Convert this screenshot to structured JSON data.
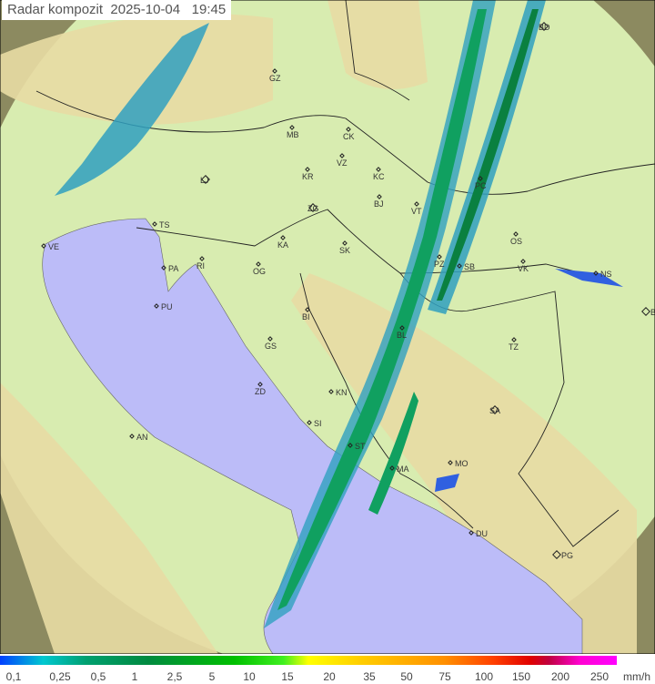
{
  "title": {
    "label": "Radar kompozit",
    "date": "2025-10-04",
    "time": "19:45"
  },
  "legend": {
    "unit": "mm/h",
    "values": [
      "0,1",
      "0,25",
      "0,5",
      "1",
      "2,5",
      "5",
      "10",
      "15",
      "20",
      "35",
      "50",
      "75",
      "100",
      "150",
      "200",
      "250"
    ]
  },
  "map": {
    "colors": {
      "land": "#d8ecb0",
      "highland": "#e6dca0",
      "sea": "#bcbcf8",
      "outside_range": "#8c8a60",
      "precip_light": "#30a0c0",
      "precip_mid": "#10a060",
      "precip_core": "#0a8040"
    },
    "cities": [
      "GZ",
      "MB",
      "CK",
      "VZ",
      "KR",
      "KC",
      "LJ",
      "TS",
      "ZG",
      "BJ",
      "VT",
      "PC",
      "BD",
      "KA",
      "SK",
      "RI",
      "VE",
      "PA",
      "OG",
      "OS",
      "PZ",
      "SB",
      "VK",
      "NS",
      "PU",
      "BI",
      "BL",
      "BG",
      "TZ",
      "GS",
      "ZD",
      "KN",
      "SA",
      "SI",
      "AN",
      "ST",
      "MO",
      "MA",
      "DU",
      "PG"
    ]
  }
}
